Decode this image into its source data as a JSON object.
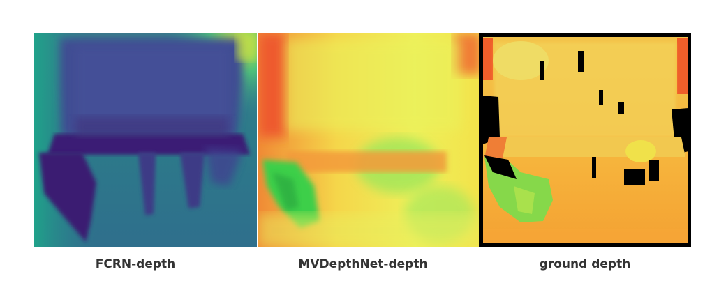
{
  "panels": [
    {
      "caption": "FCRN-depth"
    },
    {
      "caption": "MVDepthNet-depth"
    },
    {
      "caption": "ground depth"
    }
  ],
  "colors": {
    "fcrn_background": "#2f7f8e",
    "fcrn_dark": "#3b1f72",
    "fcrn_accent": "#c4e24a",
    "mvd_background": "#f4e04a",
    "mvd_red": "#ef4a2a",
    "mvd_green": "#3fd94a",
    "gt_background": "#f5b73c",
    "gt_green": "#7bd84a",
    "gt_missing": "#000000"
  }
}
